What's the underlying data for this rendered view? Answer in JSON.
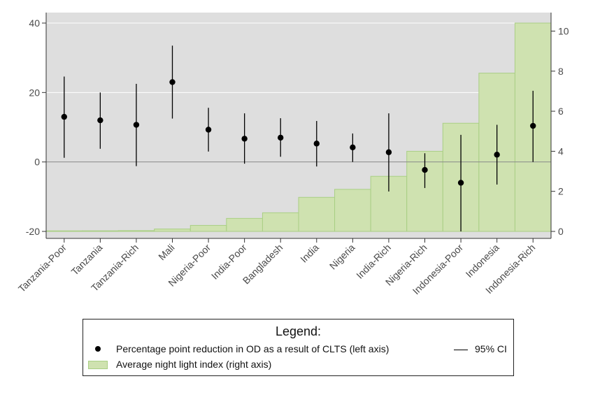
{
  "chart_data": {
    "type": "bar",
    "categories": [
      "Tanzania-Poor",
      "Tanzania",
      "Tanzania-Rich",
      "Mali",
      "Nigeria-Poor",
      "India-Poor",
      "Bangladesh",
      "India",
      "Nigeria",
      "India-Rich",
      "Nigeria-Rich",
      "Indonesia-Poor",
      "Indonesia",
      "Indonesia-Rich"
    ],
    "series": [
      {
        "name": "Percentage point reduction in OD as a result of CLTS (left axis)",
        "type": "point-with-ci",
        "axis": "left",
        "values": [
          13,
          12,
          10.7,
          23,
          9.3,
          6.7,
          7,
          5.3,
          4.2,
          2.8,
          -2.3,
          -6,
          2.1,
          10.4
        ],
        "ci_low": [
          1.2,
          3.8,
          -1.2,
          12.5,
          3,
          -0.5,
          1.5,
          -1.3,
          0,
          -8.5,
          -7.5,
          -20,
          -6.5,
          0
        ],
        "ci_high": [
          24.6,
          20,
          22.5,
          33.5,
          15.6,
          14,
          12.6,
          11.8,
          8.2,
          14,
          2.5,
          7.8,
          10.7,
          20.5
        ]
      },
      {
        "name": "Average night light index (right axis)",
        "type": "bar",
        "axis": "right",
        "values": [
          0.02,
          0.03,
          0.04,
          0.12,
          0.3,
          0.65,
          0.93,
          1.7,
          2.1,
          2.75,
          4,
          5.4,
          7.9,
          10.4
        ]
      }
    ],
    "left_axis": {
      "ylim": [
        -20,
        40
      ],
      "ticks": [
        "-20",
        "0",
        "20",
        "40"
      ]
    },
    "right_axis": {
      "ylim": [
        0,
        10.4
      ],
      "ticks": [
        "0",
        "2",
        "4",
        "6",
        "8",
        "10"
      ]
    },
    "grid": true,
    "legend_position": "bottom",
    "colors": {
      "plot_background": "#dedede",
      "bar_fill": "#cfe2b0",
      "bar_edge": "#a9cf84",
      "point": "#000000",
      "ci_line": "#000000",
      "gridline": "#ffffff"
    }
  },
  "legend": {
    "title": "Legend:",
    "items": [
      {
        "label": "Percentage point reduction in OD as a result of CLTS (left axis)",
        "icon": "dot"
      },
      {
        "label": "95% CI",
        "icon": "line"
      },
      {
        "label": "Average night light index (right axis)",
        "icon": "bar"
      }
    ]
  }
}
